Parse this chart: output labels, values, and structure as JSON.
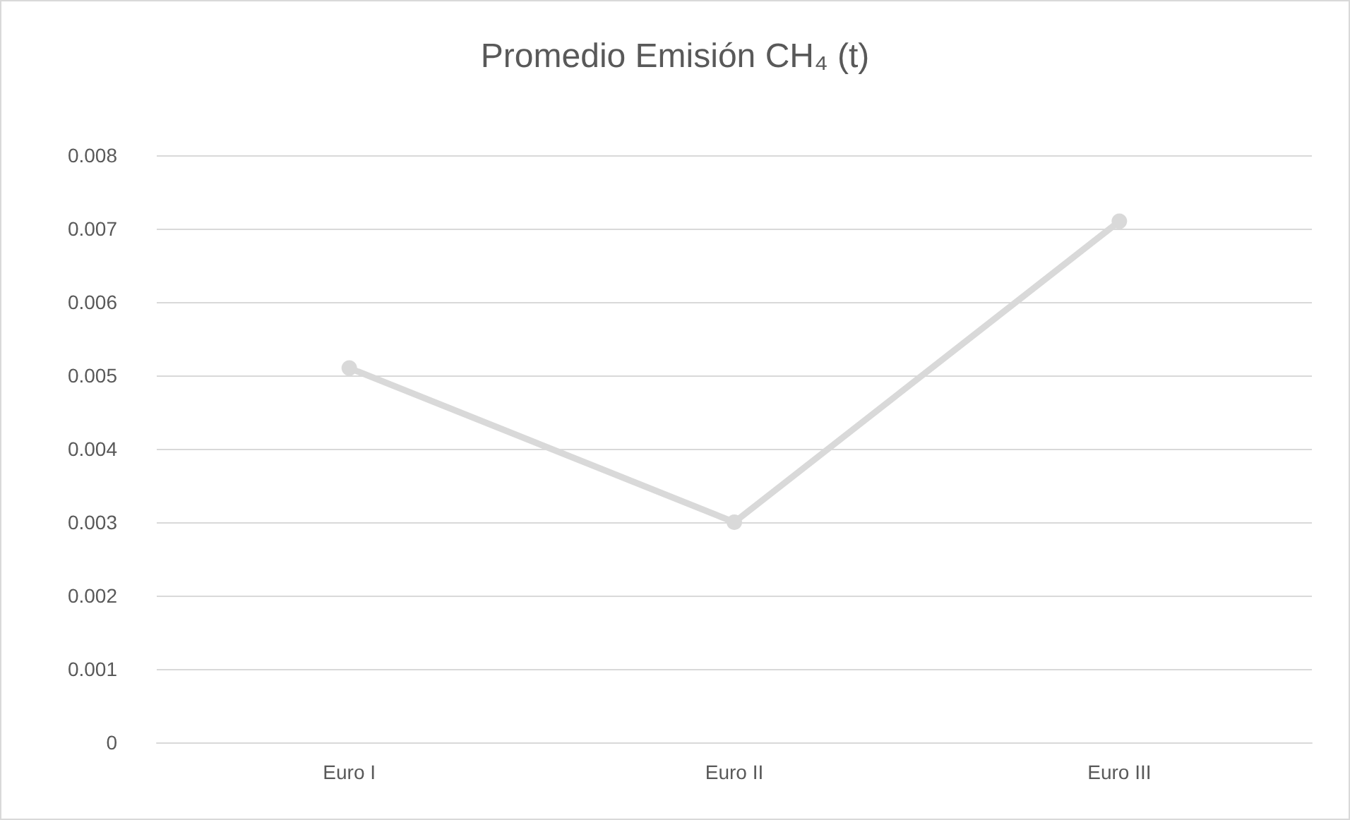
{
  "chart_data": {
    "type": "line",
    "title": "Promedio Emisión CH₄ (t)",
    "categories": [
      "Euro I",
      "Euro II",
      "Euro III"
    ],
    "series": [
      {
        "color": "#d9d9d9",
        "values": [
          0.0051,
          0.003,
          0.0071
        ]
      }
    ],
    "ylim": [
      0,
      0.008
    ],
    "yticks": [
      0,
      0.001,
      0.002,
      0.003,
      0.004,
      0.005,
      0.006,
      0.007,
      0.008
    ],
    "grid": "y",
    "marker": "circle",
    "line_style": "solid"
  }
}
